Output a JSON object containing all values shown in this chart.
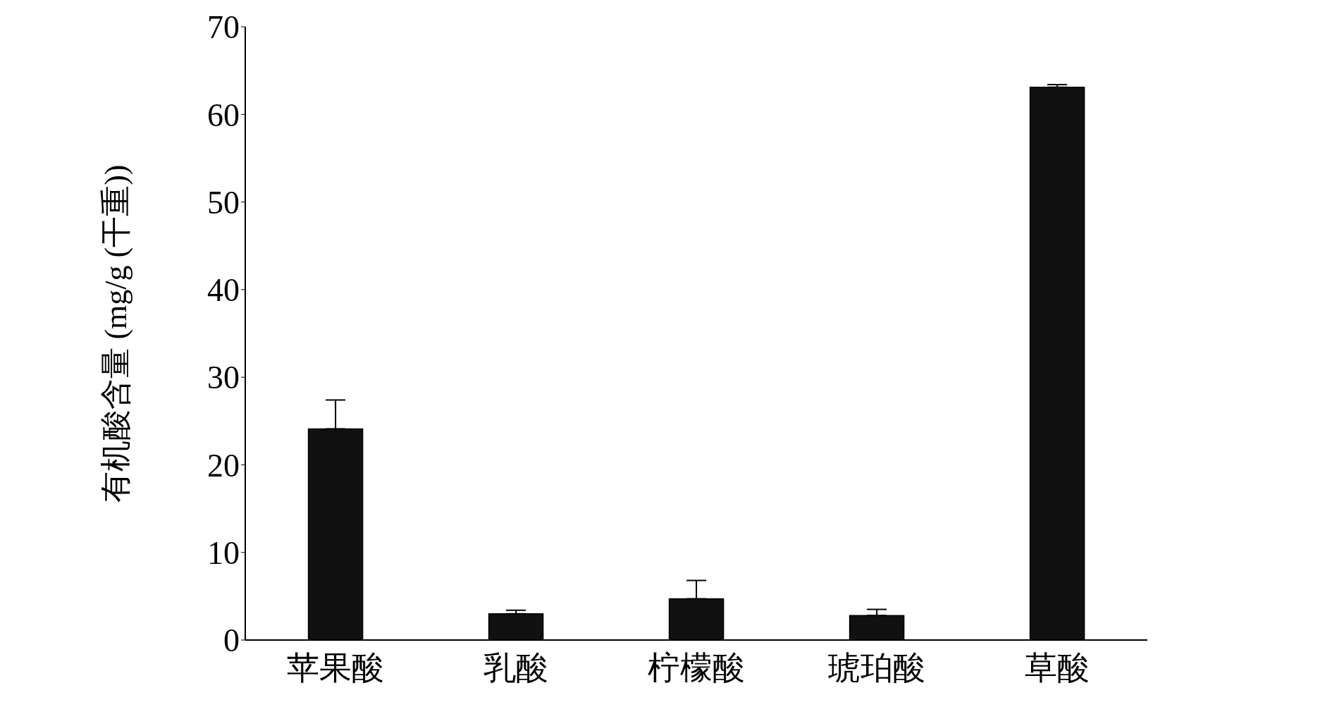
{
  "chart_data": {
    "type": "bar",
    "ylabel": "有机酸含量 (mg/g (干重))",
    "categories": [
      "苹果酸",
      "乳酸",
      "柠檬酸",
      "琥珀酸",
      "草酸"
    ],
    "values": [
      24.1,
      3.0,
      4.7,
      2.8,
      63.1
    ],
    "color": "#111111",
    "errors": [
      [
        24.1,
        27.4
      ],
      [
        3.0,
        3.4
      ],
      [
        4.7,
        6.8
      ],
      [
        2.8,
        3.5
      ],
      [
        63.1,
        63.4
      ]
    ],
    "ylim": [
      0,
      70
    ],
    "yticks": [
      0,
      10,
      20,
      30,
      40,
      50,
      60,
      70
    ],
    "grid": false,
    "legend": false
  }
}
